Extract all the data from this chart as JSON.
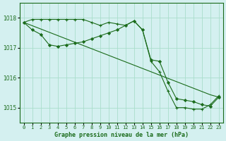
{
  "title": "Graphe pression niveau de la mer (hPa)",
  "background_color": "#d4f0f0",
  "grid_color": "#aaddcc",
  "line_color": "#1a6b1a",
  "xlim": [
    -0.5,
    23.5
  ],
  "ylim": [
    1014.5,
    1018.5
  ],
  "yticks": [
    1015,
    1016,
    1017,
    1018
  ],
  "xtick_labels": [
    "0",
    "1",
    "2",
    "3",
    "4",
    "5",
    "6",
    "7",
    "8",
    "9",
    "10",
    "11",
    "12",
    "13",
    "14",
    "15",
    "16",
    "17",
    "18",
    "19",
    "20",
    "21",
    "22",
    "23"
  ],
  "series": [
    {
      "x": [
        0,
        1,
        2,
        3,
        4,
        5,
        6,
        7,
        8,
        9,
        10,
        11,
        12,
        13,
        14,
        15,
        16,
        17,
        18,
        19,
        20,
        21,
        22,
        23
      ],
      "y": [
        1017.85,
        1017.95,
        1017.95,
        1017.95,
        1017.95,
        1017.95,
        1017.95,
        1017.95,
        1017.85,
        1017.75,
        1017.85,
        1017.8,
        1017.75,
        1017.9,
        1017.6,
        1016.55,
        1016.2,
        1015.55,
        1015.0,
        1015.0,
        1014.95,
        1014.95,
        1015.1,
        1015.4
      ],
      "marker": "+"
    },
    {
      "x": [
        0,
        1,
        2,
        3,
        4,
        5,
        6,
        7,
        8,
        9,
        10,
        11,
        12,
        13,
        14,
        15,
        16,
        17,
        18,
        19,
        20,
        21,
        22,
        23
      ],
      "y": [
        1017.85,
        1017.74,
        1017.63,
        1017.52,
        1017.41,
        1017.3,
        1017.19,
        1017.08,
        1016.97,
        1016.86,
        1016.75,
        1016.64,
        1016.53,
        1016.42,
        1016.31,
        1016.2,
        1016.09,
        1015.98,
        1015.87,
        1015.76,
        1015.65,
        1015.54,
        1015.43,
        1015.35
      ],
      "marker": null
    },
    {
      "x": [
        0,
        1,
        2,
        3,
        4,
        5,
        6,
        7,
        8,
        9,
        10,
        11,
        12,
        13,
        14,
        15,
        16,
        17,
        18,
        19,
        20,
        21,
        22,
        23
      ],
      "y": [
        1017.85,
        1017.6,
        1017.45,
        1017.1,
        1017.05,
        1017.1,
        1017.15,
        1017.2,
        1017.3,
        1017.4,
        1017.5,
        1017.6,
        1017.75,
        1017.9,
        1017.6,
        1016.6,
        1016.55,
        1015.85,
        1015.3,
        1015.25,
        1015.2,
        1015.1,
        1015.05,
        1015.35
      ],
      "marker": "D"
    }
  ]
}
